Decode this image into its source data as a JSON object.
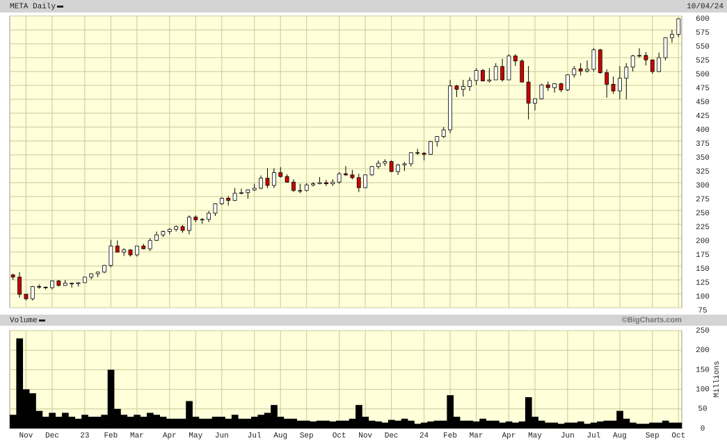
{
  "chart_data": [
    {
      "type": "candlestick",
      "title": "META Daily",
      "date": "10/04/24",
      "categories": [
        null,
        null,
        "Nov",
        null,
        null,
        null,
        "Dec",
        null,
        null,
        null,
        null,
        "23",
        null,
        null,
        null,
        "Feb",
        null,
        null,
        null,
        "Mar",
        null,
        null,
        null,
        null,
        "Apr",
        null,
        null,
        null,
        "May",
        null,
        null,
        null,
        "Jun",
        null,
        null,
        null,
        null,
        "Jul",
        null,
        null,
        null,
        "Aug",
        null,
        null,
        null,
        "Sep",
        null,
        null,
        null,
        null,
        "Oct",
        null,
        null,
        null,
        "Nov",
        null,
        null,
        null,
        "Dec",
        null,
        null,
        null,
        null,
        "24",
        null,
        null,
        null,
        "Feb",
        null,
        null,
        null,
        "Mar",
        null,
        null,
        null,
        null,
        "Apr",
        null,
        null,
        null,
        "May",
        null,
        null,
        null,
        null,
        "Jun",
        null,
        null,
        null,
        "Jul",
        null,
        null,
        null,
        "Aug",
        null,
        null,
        null,
        null,
        "Sep",
        null,
        null,
        null,
        "Oct"
      ],
      "open": [
        134,
        130,
        99,
        91,
        113,
        112,
        111,
        123,
        115,
        119,
        118,
        120,
        130,
        136,
        139,
        151,
        186,
        175,
        179,
        170,
        186,
        181,
        196,
        206,
        212,
        216,
        221,
        214,
        238,
        233,
        234,
        245,
        262,
        272,
        268,
        281,
        282,
        287,
        290,
        308,
        295,
        318,
        311,
        301,
        286,
        286,
        296,
        298,
        300,
        298,
        301,
        316,
        314,
        309,
        291,
        314,
        329,
        335,
        338,
        320,
        332,
        334,
        354,
        353,
        351,
        374,
        383,
        395,
        474,
        468,
        473,
        484,
        502,
        483,
        485,
        509,
        485,
        528,
        519,
        481,
        443,
        451,
        476,
        471,
        478,
        467,
        494,
        505,
        501,
        504,
        539,
        498,
        477,
        465,
        488,
        508,
        528,
        529,
        521,
        500,
        525,
        561,
        567
      ],
      "high": [
        136,
        139,
        100,
        114,
        117,
        113,
        124,
        125,
        125,
        120,
        121,
        131,
        137,
        140,
        152,
        197,
        196,
        182,
        180,
        186,
        190,
        200,
        212,
        214,
        218,
        223,
        224,
        241,
        241,
        236,
        249,
        263,
        274,
        276,
        290,
        289,
        288,
        298,
        313,
        326,
        326,
        328,
        315,
        306,
        298,
        299,
        301,
        310,
        305,
        306,
        319,
        330,
        323,
        316,
        315,
        330,
        340,
        342,
        340,
        334,
        337,
        355,
        361,
        355,
        375,
        384,
        400,
        485,
        476,
        485,
        490,
        506,
        505,
        506,
        515,
        523,
        531,
        531,
        522,
        510,
        452,
        478,
        482,
        479,
        480,
        495,
        510,
        515,
        520,
        542,
        541,
        504,
        491,
        510,
        515,
        530,
        542,
        535,
        521,
        534,
        562,
        575,
        596
      ],
      "low": [
        125,
        93,
        88,
        88,
        109,
        108,
        108,
        113,
        114,
        111,
        113,
        120,
        126,
        130,
        137,
        148,
        174,
        168,
        167,
        167,
        180,
        177,
        195,
        202,
        207,
        212,
        210,
        207,
        229,
        226,
        229,
        240,
        260,
        259,
        267,
        279,
        271,
        285,
        288,
        290,
        290,
        309,
        300,
        283,
        281,
        284,
        293,
        297,
        294,
        294,
        298,
        312,
        306,
        283,
        290,
        312,
        325,
        330,
        319,
        314,
        321,
        329,
        350,
        340,
        350,
        365,
        380,
        389,
        454,
        455,
        465,
        476,
        483,
        480,
        485,
        482,
        485,
        510,
        481,
        414,
        430,
        450,
        465,
        462,
        463,
        465,
        489,
        493,
        498,
        500,
        496,
        453,
        460,
        450,
        450,
        500,
        525,
        511,
        496,
        499,
        520,
        552,
        562
      ],
      "close": [
        130,
        99,
        91,
        113,
        112,
        111,
        123,
        115,
        119,
        118,
        120,
        130,
        136,
        139,
        151,
        186,
        175,
        179,
        170,
        186,
        181,
        196,
        206,
        212,
        216,
        221,
        214,
        238,
        233,
        234,
        245,
        262,
        272,
        268,
        281,
        282,
        287,
        290,
        308,
        295,
        318,
        311,
        301,
        286,
        286,
        296,
        298,
        300,
        298,
        301,
        316,
        314,
        309,
        291,
        314,
        329,
        335,
        338,
        320,
        332,
        334,
        354,
        353,
        351,
        374,
        383,
        395,
        474,
        468,
        473,
        484,
        502,
        483,
        485,
        509,
        485,
        528,
        519,
        481,
        443,
        451,
        476,
        471,
        478,
        467,
        494,
        505,
        501,
        504,
        539,
        498,
        477,
        465,
        488,
        508,
        528,
        529,
        521,
        500,
        525,
        561,
        567,
        595
      ],
      "up_color": "#ffffff",
      "down_color": "#cc0000",
      "ylim": [
        75,
        600
      ],
      "yticks": [
        75,
        100,
        125,
        150,
        175,
        200,
        225,
        250,
        275,
        300,
        325,
        350,
        375,
        400,
        425,
        450,
        475,
        500,
        525,
        550,
        575,
        600
      ],
      "grid": true
    },
    {
      "type": "bar",
      "title": "Volume",
      "credit": "©BigCharts.com",
      "ylabel": "Millions",
      "values": [
        35,
        230,
        100,
        90,
        45,
        30,
        40,
        30,
        40,
        30,
        25,
        35,
        30,
        30,
        35,
        150,
        50,
        35,
        30,
        35,
        30,
        40,
        35,
        30,
        25,
        25,
        25,
        70,
        30,
        25,
        25,
        30,
        30,
        25,
        35,
        25,
        25,
        30,
        35,
        40,
        60,
        30,
        25,
        25,
        20,
        20,
        18,
        20,
        20,
        18,
        20,
        20,
        25,
        60,
        30,
        20,
        18,
        15,
        22,
        20,
        25,
        20,
        12,
        15,
        18,
        20,
        20,
        85,
        30,
        20,
        20,
        18,
        25,
        20,
        20,
        15,
        18,
        15,
        18,
        80,
        30,
        20,
        15,
        15,
        12,
        15,
        15,
        18,
        12,
        15,
        18,
        20,
        20,
        45,
        25,
        15,
        12,
        12,
        15,
        15,
        20,
        15,
        15
      ],
      "color": "#000000",
      "ylim": [
        0,
        250
      ],
      "yticks": [
        0,
        50,
        100,
        150,
        200,
        250
      ],
      "grid": true
    }
  ]
}
